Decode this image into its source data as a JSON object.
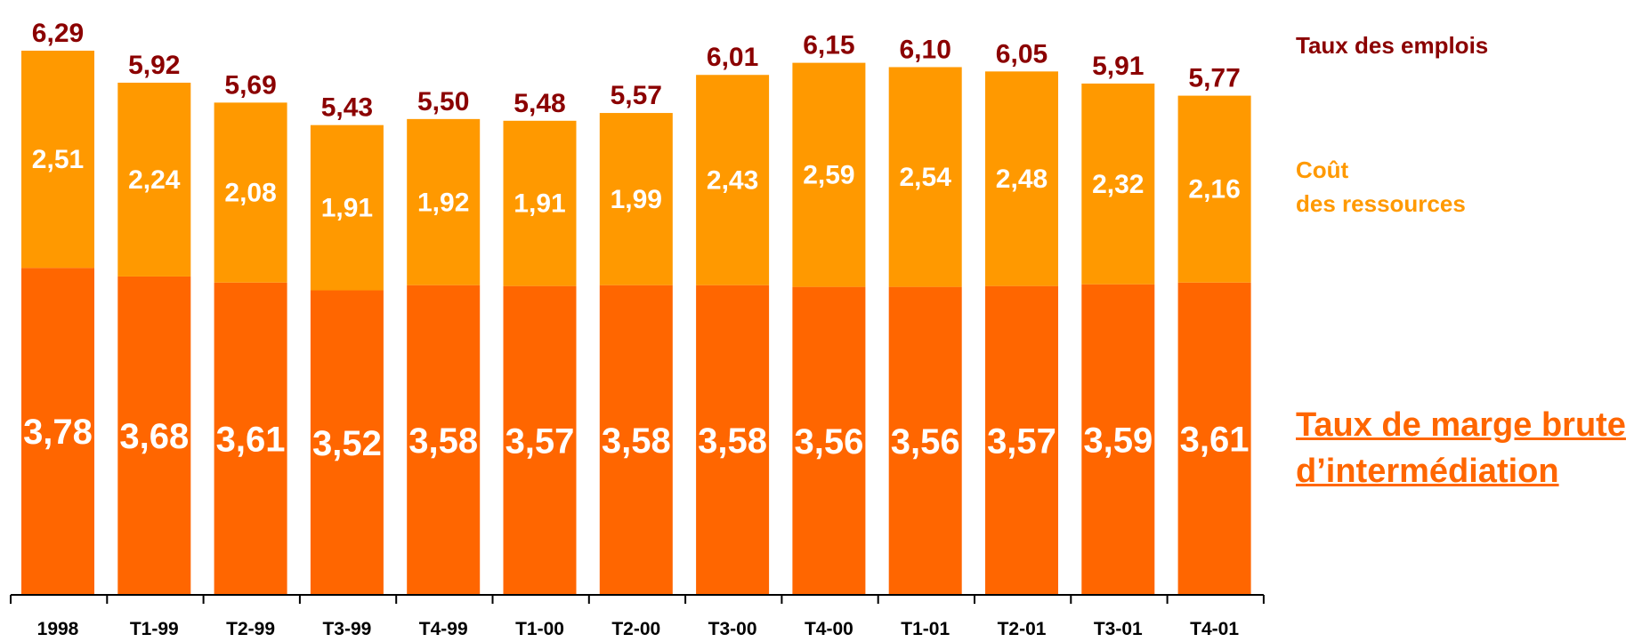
{
  "chart_data": {
    "type": "bar",
    "stacked": true,
    "categories": [
      "1998",
      "T1-99",
      "T2-99",
      "T3-99",
      "T4-99",
      "T1-00",
      "T2-00",
      "T3-00",
      "T4-00",
      "T1-01",
      "T2-01",
      "T3-01",
      "T4-01"
    ],
    "series": [
      {
        "name": "Taux de marge brute d’intermédiation",
        "color": "#ff6600",
        "values": [
          3.78,
          3.68,
          3.61,
          3.52,
          3.58,
          3.57,
          3.58,
          3.58,
          3.56,
          3.56,
          3.57,
          3.59,
          3.61
        ],
        "labels": [
          "3,78",
          "3,68",
          "3,61",
          "3,52",
          "3,58",
          "3,57",
          "3,58",
          "3,58",
          "3,56",
          "3,56",
          "3,57",
          "3,59",
          "3,61"
        ]
      },
      {
        "name": "Coût des ressources",
        "color": "#ff9900",
        "values": [
          2.51,
          2.24,
          2.08,
          1.91,
          1.92,
          1.91,
          1.99,
          2.43,
          2.59,
          2.54,
          2.48,
          2.32,
          2.16
        ],
        "labels": [
          "2,51",
          "2,24",
          "2,08",
          "1,91",
          "1,92",
          "1,91",
          "1,99",
          "2,43",
          "2,59",
          "2,54",
          "2,48",
          "2,32",
          "2,16"
        ]
      }
    ],
    "totals": {
      "name": "Taux des emplois",
      "color": "#8b0000",
      "values": [
        6.29,
        5.92,
        5.69,
        5.43,
        5.5,
        5.48,
        5.57,
        6.01,
        6.15,
        6.1,
        6.05,
        5.91,
        5.77
      ],
      "labels": [
        "6,29",
        "5,92",
        "5,69",
        "5,43",
        "5,50",
        "5,48",
        "5,57",
        "6,01",
        "6,15",
        "6,10",
        "6,05",
        "5,91",
        "5,77"
      ]
    },
    "legend": {
      "emplois": "Taux des emplois",
      "cout_line1": "Coût",
      "cout_line2": "des ressources",
      "marge_line1": "Taux de marge brute",
      "marge_line2": "d’intermédiation"
    },
    "legend_position": "right",
    "ylim": [
      0,
      6.29
    ],
    "grid": false,
    "title": "",
    "xlabel": "",
    "ylabel": ""
  }
}
